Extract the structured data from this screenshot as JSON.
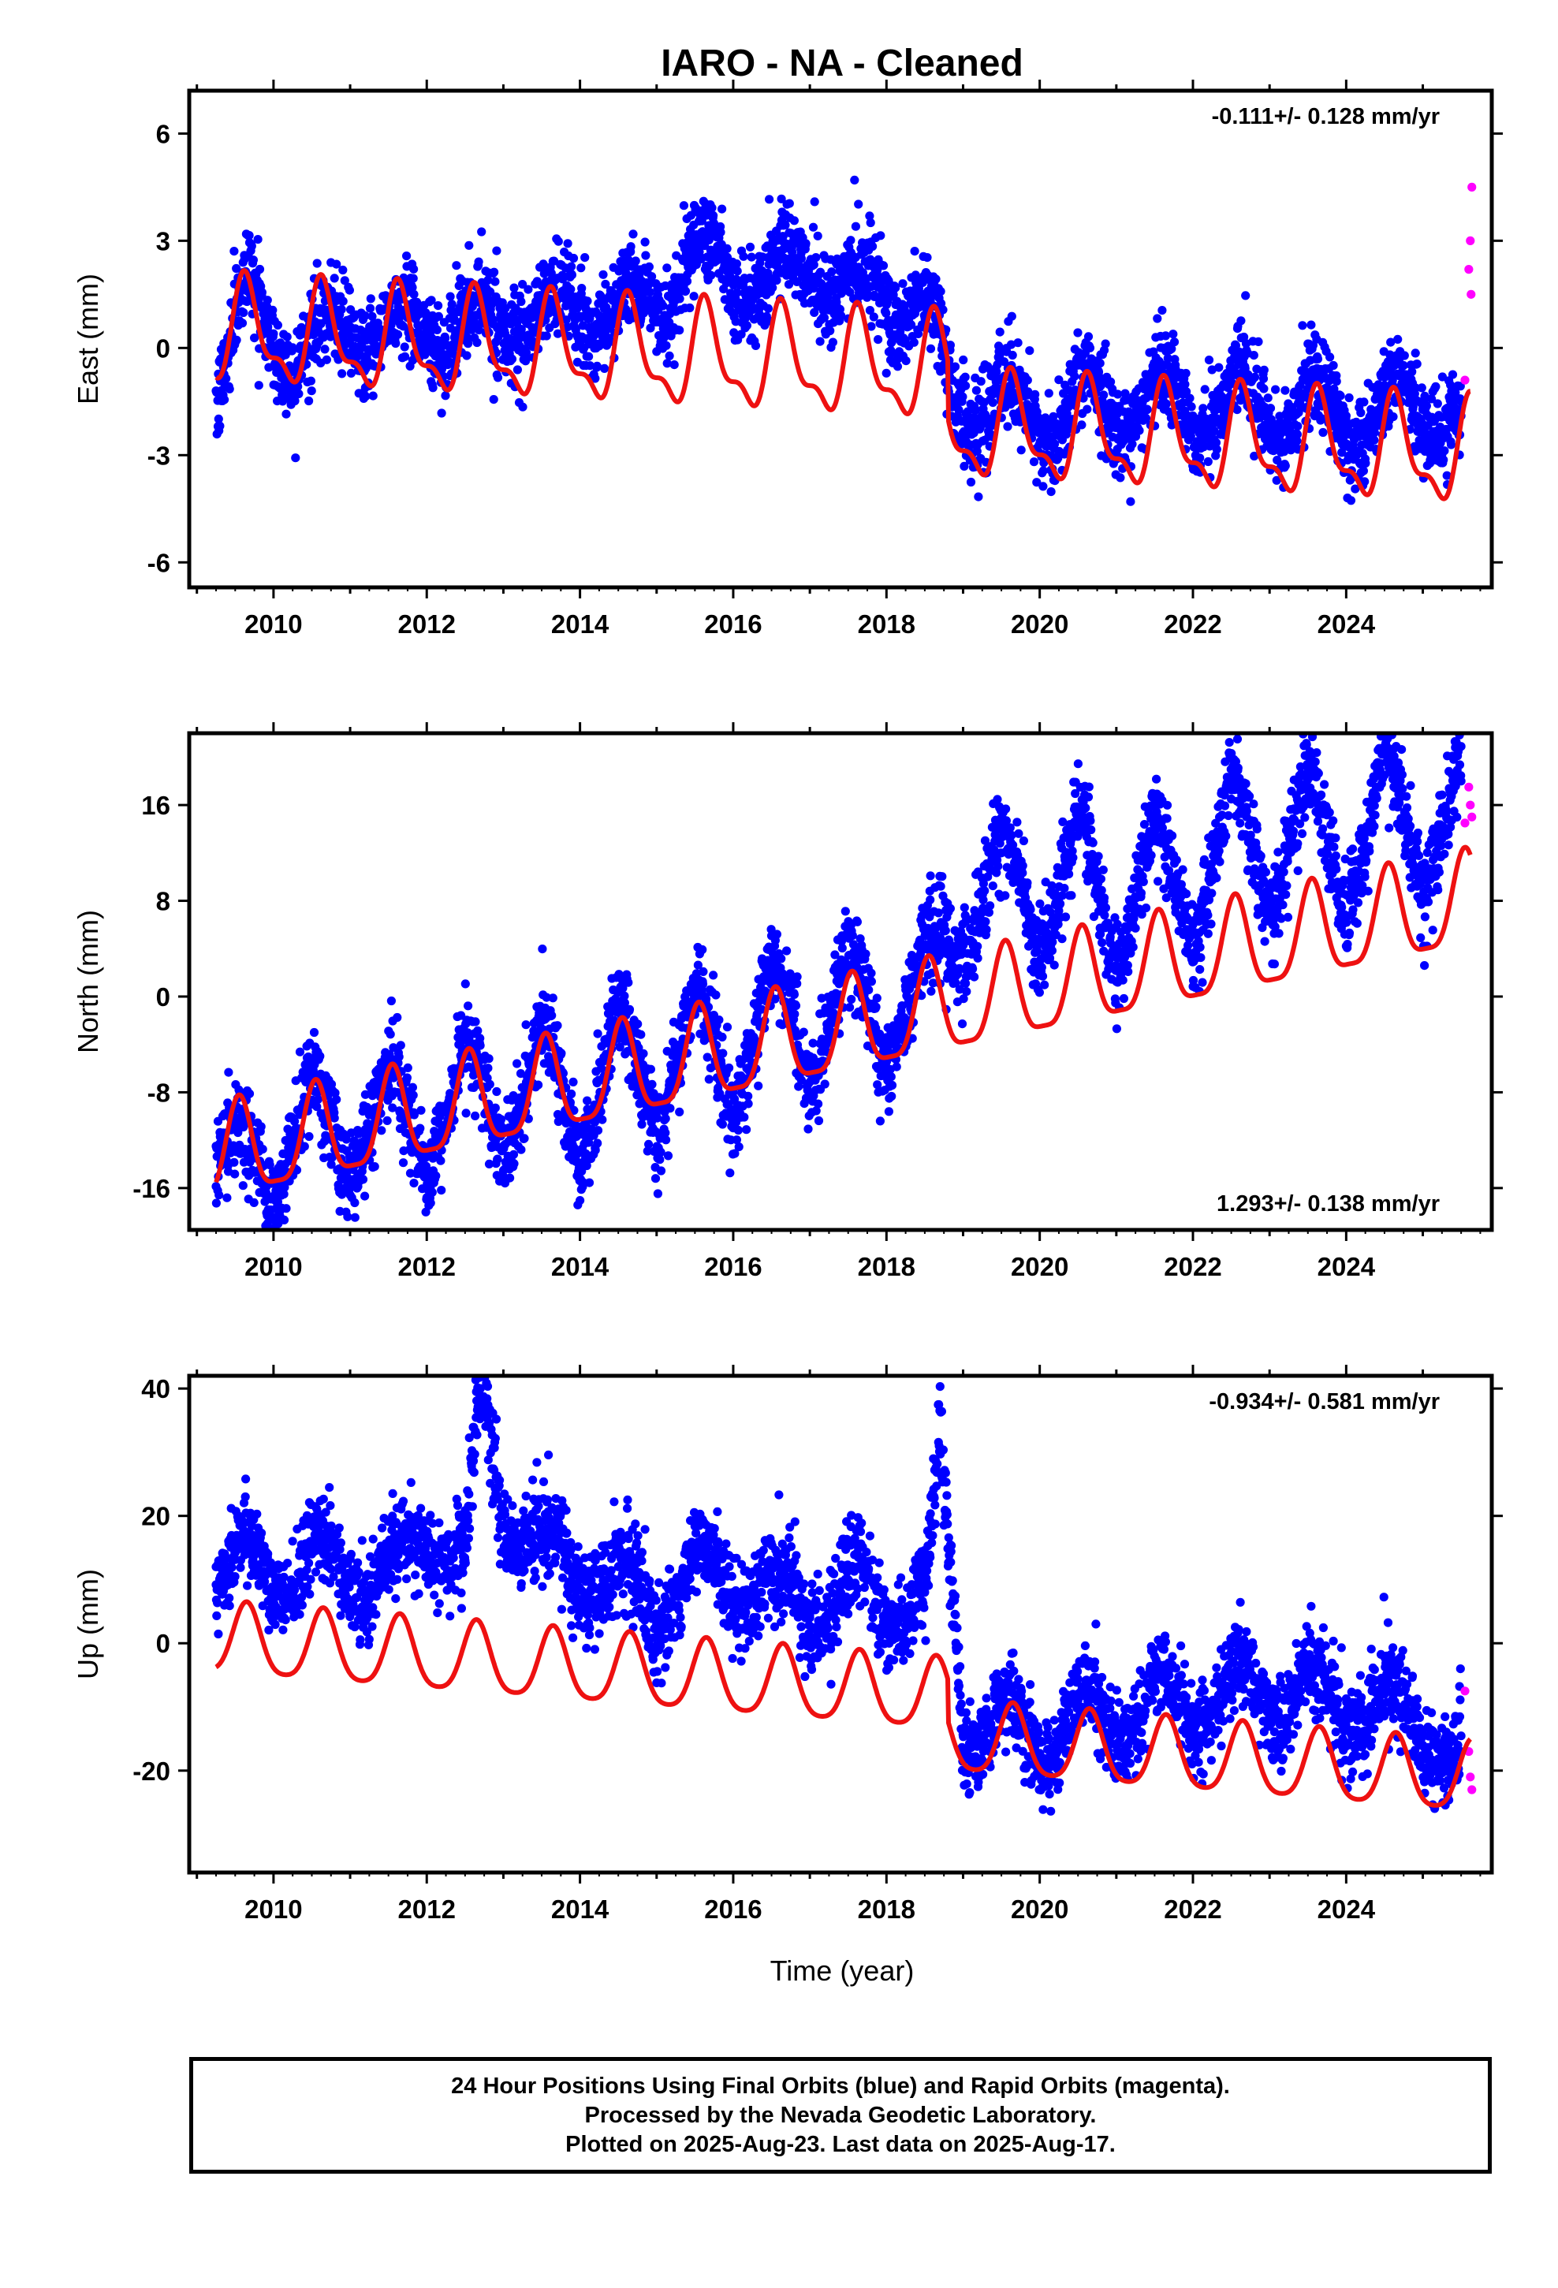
{
  "title": "IARO  - NA - Cleaned",
  "xlabel": "Time (year)",
  "caption": [
    "24 Hour Positions Using Final Orbits (blue) and Rapid Orbits (magenta).",
    "Processed by the Nevada Geodetic Laboratory.",
    "Plotted on 2025-Aug-23. Last data on 2025-Aug-17."
  ],
  "colors": {
    "final_orbits": "#0000ff",
    "rapid_orbits": "#ff00ff",
    "model": "#ee1111",
    "frame": "#000000"
  },
  "chart_data": [
    {
      "type": "scatter",
      "ylabel": "East (mm)",
      "rate": "-0.111+/- 0.128 mm/yr",
      "rate_position": "top-right",
      "xlim": [
        2008.9,
        2025.9
      ],
      "ylim": [
        -6.7,
        7.2
      ],
      "xticks": [
        2010,
        2012,
        2014,
        2016,
        2018,
        2020,
        2022,
        2024
      ],
      "yticks": [
        -6,
        -3,
        0,
        3,
        6
      ],
      "grid": false,
      "series": [
        {
          "color": "#0000ff",
          "x": [
            2009.25,
            2009.65,
            2010.0,
            2010.5,
            2011.0,
            2011.5,
            2012.0,
            2012.5,
            2013.0,
            2013.5,
            2014.0,
            2014.5,
            2015.0,
            2015.5,
            2016.0,
            2016.5,
            2017.0,
            2017.5,
            2018.0,
            2018.5,
            2018.9,
            2019.5,
            2020.0,
            2020.5,
            2021.0,
            2021.5,
            2022.0,
            2022.5,
            2023.0,
            2023.5,
            2024.0,
            2024.5,
            2025.0,
            2025.5
          ],
          "y": [
            -1.2,
            1.6,
            0.4,
            -0.2,
            0.8,
            0.2,
            0.8,
            0.4,
            1.0,
            0.7,
            1.3,
            1.0,
            1.4,
            2.6,
            2.2,
            1.8,
            2.4,
            1.6,
            1.6,
            1.2,
            -1.6,
            -1.5,
            -2.2,
            -1.4,
            -1.8,
            -1.2,
            -1.9,
            -1.3,
            -2.0,
            -1.4,
            -2.1,
            -1.5,
            -1.7,
            -1.9
          ]
        },
        {
          "color": "#ff00ff",
          "x": [
            2025.55,
            2025.6,
            2025.62,
            2025.63,
            2025.64
          ],
          "y": [
            -0.9,
            2.2,
            3.0,
            1.5,
            4.5
          ]
        }
      ],
      "model": {
        "color": "#ee1111",
        "rate": -0.111,
        "offset_2018_8": -1.6,
        "annual_amp": 1.3,
        "annual_peak": 0.65,
        "semiannual_amp": 0.55,
        "semiannual_peak": 0.1,
        "x_start": 2009.25,
        "x_end": 2025.62
      }
    },
    {
      "type": "scatter",
      "ylabel": "North (mm)",
      "rate": "1.293+/- 0.138 mm/yr",
      "rate_position": "bottom-right",
      "xlim": [
        2008.9,
        2025.9
      ],
      "ylim": [
        -19.5,
        22.0
      ],
      "xticks": [
        2010,
        2012,
        2014,
        2016,
        2018,
        2020,
        2022,
        2024
      ],
      "yticks": [
        -16,
        -8,
        0,
        8,
        16
      ],
      "grid": false,
      "series": [
        {
          "color": "#0000ff",
          "x": [
            2009.25,
            2009.75,
            2010.0,
            2010.5,
            2011.0,
            2011.5,
            2012.0,
            2012.5,
            2013.0,
            2013.5,
            2014.0,
            2014.5,
            2015.0,
            2015.5,
            2016.0,
            2016.5,
            2017.0,
            2017.5,
            2018.0,
            2018.5,
            2019.0,
            2019.5,
            2020.0,
            2020.5,
            2021.0,
            2021.5,
            2022.0,
            2022.5,
            2023.0,
            2023.5,
            2024.0,
            2024.5,
            2025.0,
            2025.5
          ],
          "y": [
            -12.5,
            -13.5,
            -15.0,
            -9.0,
            -13.5,
            -7.5,
            -13.0,
            -6.0,
            -11.0,
            -4.5,
            -11.5,
            -3.0,
            -9.5,
            -1.5,
            -8.0,
            1.0,
            -5.0,
            2.0,
            -4.0,
            3.0,
            5.0,
            12.0,
            5.5,
            13.5,
            4.0,
            13.0,
            6.0,
            16.5,
            8.5,
            17.5,
            8.5,
            18.5,
            11.0,
            18.0
          ]
        },
        {
          "color": "#ff00ff",
          "x": [
            2025.55,
            2025.6,
            2025.62,
            2025.64
          ],
          "y": [
            14.5,
            17.5,
            16.0,
            15.0
          ]
        }
      ],
      "model": {
        "color": "#ee1111",
        "rate": 1.293,
        "base_2009": -13.5,
        "offset_2018_8": 0,
        "annual_amp": 3.9,
        "annual_peak": 0.55,
        "semiannual_amp": 1.0,
        "semiannual_peak": 0.05,
        "x_start": 2009.25,
        "x_end": 2025.62
      }
    },
    {
      "type": "scatter",
      "ylabel": "Up (mm)",
      "rate": "-0.934+/- 0.581 mm/yr",
      "rate_position": "top-right",
      "xlim": [
        2008.9,
        2025.9
      ],
      "ylim": [
        -36.0,
        42.0
      ],
      "xticks": [
        2010,
        2012,
        2014,
        2016,
        2018,
        2020,
        2022,
        2024
      ],
      "yticks": [
        -20,
        0,
        20,
        40
      ],
      "grid": false,
      "series": [
        {
          "color": "#0000ff",
          "x": [
            2009.25,
            2009.7,
            2010.0,
            2010.5,
            2011.0,
            2011.5,
            2012.0,
            2012.5,
            2012.7,
            2013.0,
            2013.5,
            2014.0,
            2014.5,
            2015.0,
            2015.5,
            2016.0,
            2016.5,
            2017.0,
            2017.5,
            2018.0,
            2018.5,
            2018.7,
            2019.0,
            2019.5,
            2020.0,
            2020.5,
            2021.0,
            2021.5,
            2022.0,
            2022.5,
            2023.0,
            2023.5,
            2024.0,
            2024.5,
            2025.0,
            2025.5
          ],
          "y": [
            12.0,
            14.0,
            8.0,
            14.0,
            10.0,
            12.0,
            17.0,
            13.0,
            40.0,
            20.0,
            16.0,
            10.0,
            12.0,
            3.0,
            13.0,
            8.0,
            10.0,
            4.0,
            10.0,
            5.0,
            8.0,
            30.0,
            -14.0,
            -10.0,
            -18.0,
            -9.0,
            -14.0,
            -7.0,
            -12.0,
            -5.0,
            -10.0,
            -6.0,
            -12.0,
            -8.0,
            -16.0,
            -17.0
          ]
        },
        {
          "color": "#ff00ff",
          "x": [
            2025.55,
            2025.6,
            2025.62,
            2025.64
          ],
          "y": [
            -7.5,
            -17.0,
            -21.0,
            -23.0
          ]
        }
      ],
      "model": {
        "color": "#ee1111",
        "rate": -0.934,
        "offset_2018_8": -6.5,
        "annual_amp": 5.5,
        "annual_peak": 0.65,
        "semiannual_amp": 1.0,
        "semiannual_peak": 0.15,
        "x_start": 2009.25,
        "x_end": 2025.62
      }
    }
  ]
}
